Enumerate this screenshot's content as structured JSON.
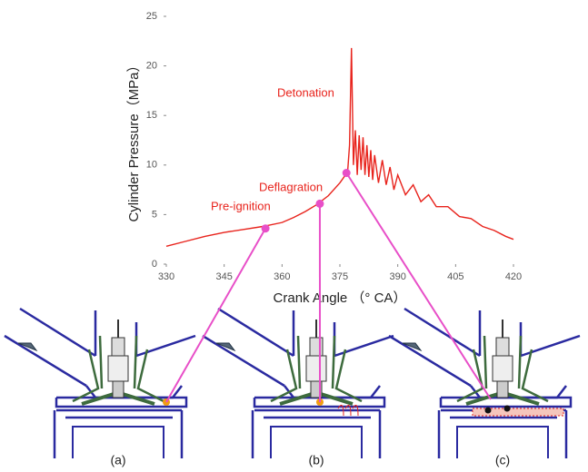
{
  "chart_data": {
    "type": "line",
    "x_label": "Crank Angle （° CA）",
    "y_label": "Cylinder Pressure（MPa）",
    "xlim": [
      330,
      420
    ],
    "xticks": [
      330,
      345,
      360,
      375,
      390,
      405,
      420
    ],
    "ylim": [
      0,
      25
    ],
    "yticks": [
      0,
      5,
      10,
      15,
      20,
      25
    ],
    "series": [
      {
        "color": "#e8231c",
        "x": [
          330,
          335,
          340,
          345,
          350,
          355,
          360,
          363,
          366,
          369,
          372,
          375,
          377,
          377.5,
          378,
          378.5,
          379,
          379.5,
          380,
          380.5,
          381,
          381.5,
          382,
          382.5,
          383,
          383.5,
          384,
          385,
          386,
          387,
          388,
          389,
          390,
          392,
          394,
          396,
          398,
          400,
          403,
          406,
          409,
          412,
          415,
          418,
          420
        ],
        "values": [
          1.8,
          2.3,
          2.8,
          3.2,
          3.5,
          3.8,
          4.2,
          4.7,
          5.3,
          6.0,
          6.9,
          8.2,
          9.3,
          12,
          21.8,
          10,
          13.5,
          9,
          13,
          9.5,
          12.8,
          9,
          12,
          8.8,
          11.5,
          8.5,
          11,
          8.2,
          10.5,
          8,
          9.8,
          7.5,
          9,
          7,
          8,
          6.3,
          7,
          5.8,
          5.8,
          4.8,
          4.6,
          3.8,
          3.4,
          2.8,
          2.5
        ]
      }
    ],
    "annotations": [
      {
        "text": "Pre-ignition",
        "x": 355.7,
        "y": 3.6,
        "panel": "(a)"
      },
      {
        "text": "Deflagration",
        "x": 369.8,
        "y": 6.1,
        "panel": "(b)"
      },
      {
        "text": "Detonation",
        "x": 376.7,
        "y": 9.2,
        "panel": "(c)"
      }
    ],
    "marker_color": "#e84fc8"
  }
}
